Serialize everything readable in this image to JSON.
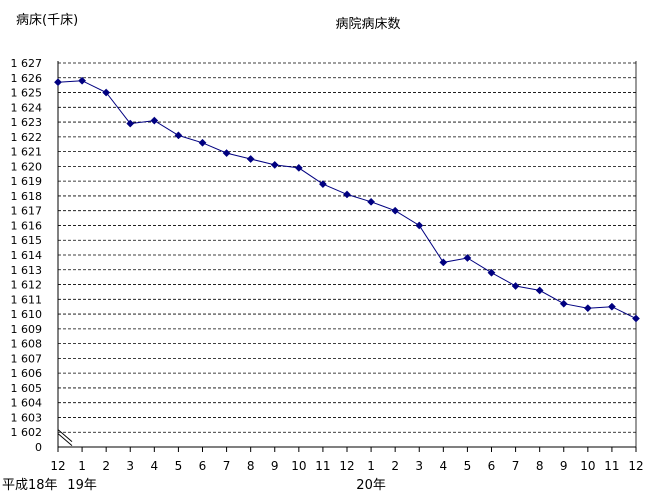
{
  "chart_data": {
    "type": "line",
    "title": "病院病床数",
    "ylabel": "病床(千床)",
    "xlabel": "",
    "categories": [
      "12",
      "1",
      "2",
      "3",
      "4",
      "5",
      "6",
      "7",
      "8",
      "9",
      "10",
      "11",
      "12",
      "1",
      "2",
      "3",
      "4",
      "5",
      "6",
      "7",
      "8",
      "9",
      "10",
      "11",
      "12"
    ],
    "era_labels": [
      "平成18年",
      "19年",
      "20年"
    ],
    "series": [
      {
        "values": [
          1625.7,
          1625.8,
          1625.0,
          1622.9,
          1623.1,
          1622.1,
          1621.6,
          1620.9,
          1620.5,
          1620.1,
          1619.9,
          1618.8,
          1618.1,
          1617.6,
          1617.0,
          1616.0,
          1613.5,
          1613.8,
          1612.8,
          1611.9,
          1611.6,
          1610.7,
          1610.4,
          1610.5,
          1609.7
        ]
      }
    ],
    "yticks": [
      "0",
      "1 602",
      "1 603",
      "1 604",
      "1 605",
      "1 606",
      "1 607",
      "1 608",
      "1 609",
      "1 610",
      "1 611",
      "1 612",
      "1 613",
      "1 614",
      "1 615",
      "1 616",
      "1 617",
      "1 618",
      "1 619",
      "1 620",
      "1 621",
      "1 622",
      "1 623",
      "1 624",
      "1 625",
      "1 626",
      "1 627"
    ],
    "ylim": [
      1601,
      1627
    ],
    "axis_break": true,
    "grid": true,
    "colors": {
      "line": "#000080",
      "marker": "#000080",
      "grid": "#000000"
    }
  }
}
